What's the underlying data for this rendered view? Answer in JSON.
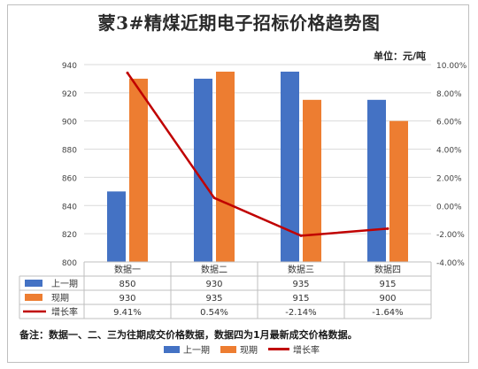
{
  "chart_data": {
    "type": "bar",
    "title": "蒙3#精煤近期电子招标价格趋势图",
    "unit_label": "单位：元/吨",
    "categories": [
      "数据一",
      "数据二",
      "数据三",
      "数据四"
    ],
    "series": [
      {
        "name": "上一期",
        "type": "bar",
        "axis": "left",
        "color": "#4472C4",
        "values": [
          850,
          930,
          935,
          915
        ],
        "labels": [
          "850",
          "930",
          "935",
          "915"
        ]
      },
      {
        "name": "现期",
        "type": "bar",
        "axis": "left",
        "color": "#ED7D31",
        "values": [
          930,
          935,
          915,
          900
        ],
        "labels": [
          "930",
          "935",
          "915",
          "900"
        ]
      },
      {
        "name": "增长率",
        "type": "line",
        "axis": "right",
        "color": "#C00000",
        "values": [
          9.41,
          0.54,
          -2.14,
          -1.64
        ],
        "labels": [
          "9.41%",
          "0.54%",
          "-2.14%",
          "-1.64%"
        ]
      }
    ],
    "y_left": {
      "min": 800,
      "max": 940,
      "step": 20,
      "ticks": [
        "800",
        "820",
        "840",
        "860",
        "880",
        "900",
        "920",
        "940"
      ]
    },
    "y_right": {
      "min": -4,
      "max": 10,
      "step": 2,
      "ticks": [
        "-4.00%",
        "-2.00%",
        "0.00%",
        "2.00%",
        "4.00%",
        "6.00%",
        "8.00%",
        "10.00%"
      ]
    },
    "grid": true,
    "legend_position": "bottom",
    "data_table": true
  },
  "note": "备注：数据一、二、三为往期成交价格数据，数据四为1月最新成交价格数据。"
}
